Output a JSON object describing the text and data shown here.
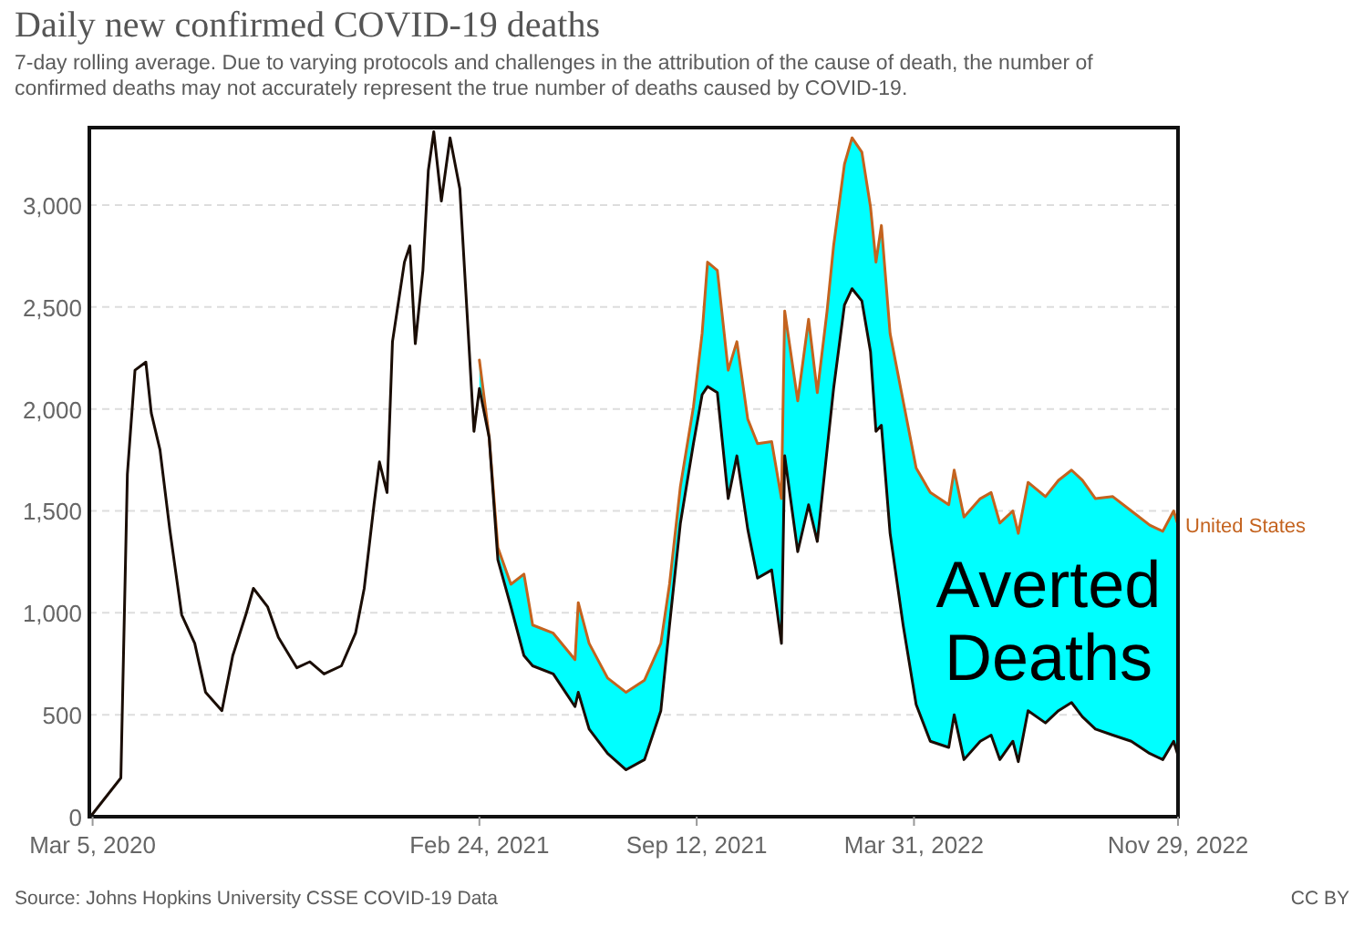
{
  "chart_data": {
    "type": "line",
    "title": "Daily new confirmed COVID-19 deaths",
    "subtitle": "7-day rolling average. Due to varying protocols and challenges in the attribution of the cause of death, the number of confirmed deaths may not accurately represent the true number of deaths caused by COVID-19.",
    "xlim": [
      "2020-03-02",
      "2022-11-29"
    ],
    "xticks": [
      {
        "value": "2020-03-05",
        "label": "Mar 5, 2020"
      },
      {
        "value": "2021-02-24",
        "label": "Feb 24, 2021"
      },
      {
        "value": "2021-09-12",
        "label": "Sep 12, 2021"
      },
      {
        "value": "2022-03-31",
        "label": "Mar 31, 2022"
      },
      {
        "value": "2022-11-29",
        "label": "Nov 29, 2022"
      }
    ],
    "ylim": [
      0,
      3380
    ],
    "yticks": [
      {
        "value": 0,
        "label": "0"
      },
      {
        "value": 500,
        "label": "500"
      },
      {
        "value": 1000,
        "label": "1,000"
      },
      {
        "value": 1500,
        "label": "1,500"
      },
      {
        "value": 2000,
        "label": "2,000"
      },
      {
        "value": 2500,
        "label": "2,500"
      },
      {
        "value": 3000,
        "label": "3,000"
      }
    ],
    "grid": "y",
    "series": [
      {
        "type": "area",
        "color": "#00ffff",
        "x": [
          "2021-02-24",
          "2021-03-05",
          "2021-03-13",
          "2021-03-25",
          "2021-04-06",
          "2021-04-14",
          "2021-05-03",
          "2021-05-23",
          "2021-05-26",
          "2021-06-05",
          "2021-06-22",
          "2021-07-09",
          "2021-07-26",
          "2021-08-10",
          "2021-08-18",
          "2021-08-28",
          "2021-09-09",
          "2021-09-17",
          "2021-09-22",
          "2021-10-01",
          "2021-10-11",
          "2021-10-19",
          "2021-10-29",
          "2021-11-07",
          "2021-11-20",
          "2021-11-29",
          "2021-12-02",
          "2021-12-14",
          "2021-12-24",
          "2022-01-01",
          "2022-01-10",
          "2022-01-16",
          "2022-01-26",
          "2022-02-02",
          "2022-02-11",
          "2022-02-19",
          "2022-02-24",
          "2022-03-01",
          "2022-03-09",
          "2022-03-21",
          "2022-04-02",
          "2022-04-15",
          "2022-05-02",
          "2022-05-07",
          "2022-05-16",
          "2022-05-31",
          "2022-06-10",
          "2022-06-18",
          "2022-06-30",
          "2022-07-05",
          "2022-07-14",
          "2022-07-30",
          "2022-08-11",
          "2022-08-23",
          "2022-09-02",
          "2022-09-14",
          "2022-09-30",
          "2022-10-17",
          "2022-11-03",
          "2022-11-15",
          "2022-11-25",
          "2022-11-29"
        ],
        "values": [
          2240,
          1860,
          1320,
          1140,
          1190,
          940,
          900,
          770,
          1050,
          850,
          680,
          610,
          670,
          850,
          1140,
          1620,
          2010,
          2370,
          2720,
          2680,
          2190,
          2330,
          1950,
          1830,
          1840,
          1560,
          2480,
          2040,
          2440,
          2080,
          2480,
          2800,
          3200,
          3330,
          3260,
          2990,
          2720,
          2900,
          2370,
          2040,
          1710,
          1590,
          1530,
          1700,
          1470,
          1560,
          1590,
          1440,
          1500,
          1390,
          1640,
          1570,
          1650,
          1700,
          1650,
          1560,
          1570,
          1500,
          1430,
          1400,
          1500,
          1430
        ]
      },
      {
        "name": "United States",
        "color": "#c4631f",
        "x": [
          "2021-02-24",
          "2021-03-05",
          "2021-03-13",
          "2021-03-25",
          "2021-04-06",
          "2021-04-14",
          "2021-05-03",
          "2021-05-23",
          "2021-05-26",
          "2021-06-05",
          "2021-06-22",
          "2021-07-09",
          "2021-07-26",
          "2021-08-10",
          "2021-08-18",
          "2021-08-28",
          "2021-09-09",
          "2021-09-17",
          "2021-09-22",
          "2021-10-01",
          "2021-10-11",
          "2021-10-19",
          "2021-10-29",
          "2021-11-07",
          "2021-11-20",
          "2021-11-29",
          "2021-12-02",
          "2021-12-14",
          "2021-12-24",
          "2022-01-01",
          "2022-01-10",
          "2022-01-16",
          "2022-01-26",
          "2022-02-02",
          "2022-02-11",
          "2022-02-19",
          "2022-02-24",
          "2022-03-01",
          "2022-03-09",
          "2022-03-21",
          "2022-04-02",
          "2022-04-15",
          "2022-05-02",
          "2022-05-07",
          "2022-05-16",
          "2022-05-31",
          "2022-06-10",
          "2022-06-18",
          "2022-06-30",
          "2022-07-05",
          "2022-07-14",
          "2022-07-30",
          "2022-08-11",
          "2022-08-23",
          "2022-09-02",
          "2022-09-14",
          "2022-09-30",
          "2022-10-17",
          "2022-11-03",
          "2022-11-15",
          "2022-11-25",
          "2022-11-29"
        ],
        "values": [
          2240,
          1860,
          1320,
          1140,
          1190,
          940,
          900,
          770,
          1050,
          850,
          680,
          610,
          670,
          850,
          1140,
          1620,
          2010,
          2370,
          2720,
          2680,
          2190,
          2330,
          1950,
          1830,
          1840,
          1560,
          2480,
          2040,
          2440,
          2080,
          2480,
          2800,
          3200,
          3330,
          3260,
          2990,
          2720,
          2900,
          2370,
          2040,
          1710,
          1590,
          1530,
          1700,
          1470,
          1560,
          1590,
          1440,
          1500,
          1390,
          1640,
          1570,
          1650,
          1700,
          1650,
          1560,
          1570,
          1500,
          1430,
          1400,
          1500,
          1430
        ]
      },
      {
        "color": "#1a0d05",
        "x": [
          "2020-03-03",
          "2020-03-31",
          "2020-04-06",
          "2020-04-13",
          "2020-04-23",
          "2020-04-28",
          "2020-05-06",
          "2020-05-15",
          "2020-05-26",
          "2020-06-07",
          "2020-06-17",
          "2020-07-02",
          "2020-07-12",
          "2020-07-24",
          "2020-07-31",
          "2020-08-13",
          "2020-08-23",
          "2020-09-09",
          "2020-09-21",
          "2020-10-04",
          "2020-10-20",
          "2020-11-02",
          "2020-11-10",
          "2020-11-19",
          "2020-11-24",
          "2020-12-01",
          "2020-12-06",
          "2020-12-17",
          "2020-12-22",
          "2020-12-27",
          "2021-01-03",
          "2021-01-08",
          "2021-01-13",
          "2021-01-20",
          "2021-01-28",
          "2021-02-06",
          "2021-02-19",
          "2021-02-24",
          "2021-03-05",
          "2021-03-13",
          "2021-03-25",
          "2021-04-06",
          "2021-04-14",
          "2021-05-03",
          "2021-05-23",
          "2021-05-26",
          "2021-06-05",
          "2021-06-22",
          "2021-07-09",
          "2021-07-26",
          "2021-08-10",
          "2021-08-18",
          "2021-08-28",
          "2021-09-09",
          "2021-09-17",
          "2021-09-22",
          "2021-10-01",
          "2021-10-11",
          "2021-10-19",
          "2021-10-29",
          "2021-11-07",
          "2021-11-20",
          "2021-11-29",
          "2021-12-02",
          "2021-12-14",
          "2021-12-24",
          "2022-01-01",
          "2022-01-10",
          "2022-01-16",
          "2022-01-26",
          "2022-02-02",
          "2022-02-11",
          "2022-02-19",
          "2022-02-24",
          "2022-03-01",
          "2022-03-09",
          "2022-03-21",
          "2022-04-02",
          "2022-04-15",
          "2022-05-02",
          "2022-05-07",
          "2022-05-16",
          "2022-05-31",
          "2022-06-10",
          "2022-06-18",
          "2022-06-30",
          "2022-07-05",
          "2022-07-14",
          "2022-07-30",
          "2022-08-11",
          "2022-08-23",
          "2022-09-02",
          "2022-09-14",
          "2022-09-30",
          "2022-10-17",
          "2022-11-03",
          "2022-11-15",
          "2022-11-25",
          "2022-11-29"
        ],
        "values": [
          0,
          190,
          1680,
          2190,
          2230,
          1980,
          1800,
          1410,
          990,
          850,
          610,
          520,
          790,
          990,
          1120,
          1030,
          880,
          730,
          760,
          700,
          740,
          900,
          1120,
          1530,
          1740,
          1590,
          2330,
          2720,
          2800,
          2320,
          2680,
          3170,
          3360,
          3020,
          3330,
          3080,
          1890,
          2100,
          1860,
          1260,
          1030,
          790,
          740,
          700,
          540,
          610,
          430,
          310,
          230,
          280,
          520,
          940,
          1440,
          1830,
          2070,
          2110,
          2080,
          1560,
          1770,
          1410,
          1170,
          1210,
          850,
          1770,
          1300,
          1530,
          1350,
          1800,
          2100,
          2510,
          2590,
          2530,
          2280,
          1890,
          1920,
          1390,
          940,
          550,
          370,
          340,
          500,
          280,
          370,
          400,
          280,
          370,
          270,
          520,
          460,
          520,
          560,
          490,
          430,
          400,
          370,
          310,
          280,
          370,
          300
        ]
      }
    ],
    "annotations": [
      "Averted\nDeaths",
      "Source: Johns Hopkins University CSSE COVID-19 Data",
      "CC BY"
    ]
  }
}
